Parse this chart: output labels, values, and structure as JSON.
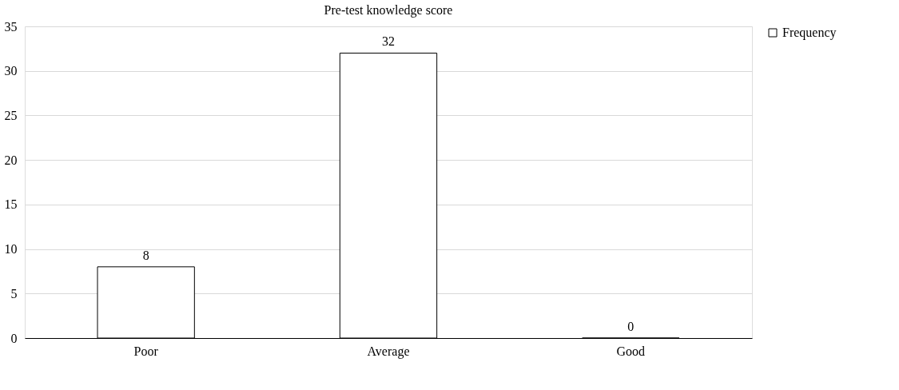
{
  "chart_data": {
    "type": "bar",
    "title": "Pre-test knowledge score",
    "categories": [
      "Poor",
      "Average",
      "Good"
    ],
    "series": [
      {
        "name": "Frequency",
        "color": "#ffffff",
        "values": [
          8,
          32,
          0
        ]
      }
    ],
    "ylim": [
      0,
      35
    ],
    "yticks": [
      0,
      5,
      10,
      15,
      20,
      25,
      30,
      35
    ],
    "grid": "y",
    "legend": "right",
    "data_labels": true
  }
}
